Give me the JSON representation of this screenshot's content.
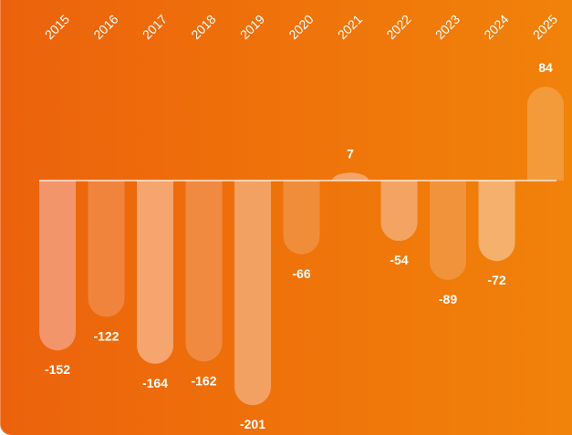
{
  "chart_data": {
    "type": "bar",
    "categories": [
      "2015",
      "2016",
      "2017",
      "2018",
      "2019",
      "2020",
      "2021",
      "2022",
      "2023",
      "2024",
      "2025"
    ],
    "values": [
      -152,
      -122,
      -164,
      -162,
      -201,
      -66,
      7,
      -54,
      -89,
      -72,
      84
    ],
    "labels": [
      "-152",
      "-122",
      "-164",
      "-162",
      "-201",
      "-66",
      "7",
      "-54",
      "-89",
      "-72",
      "84"
    ],
    "title": "",
    "xlabel": "",
    "ylabel": "",
    "ylim": [
      -201,
      84
    ],
    "grid": false,
    "legend": "none",
    "colors": {
      "background_start": "#EC620C",
      "background_end": "#F1820A",
      "zero_line": "#FFFFFF",
      "label": "#FFFFFF",
      "bar_fills": [
        "#F3956A",
        "#F0843C",
        "#F5A56D",
        "#F18A41",
        "#F3A063",
        "#F08D3A",
        "#F4A469",
        "#F4A462",
        "#F1933A",
        "#F5B06E",
        "#F39A3A"
      ]
    }
  }
}
